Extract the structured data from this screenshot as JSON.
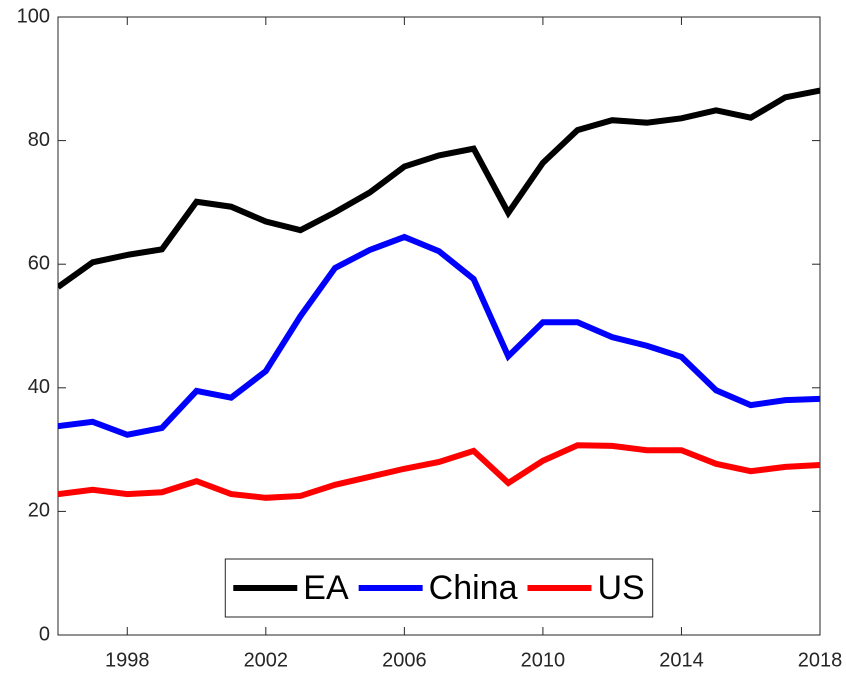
{
  "chart_data": {
    "type": "line",
    "x": [
      1996,
      1997,
      1998,
      1999,
      2000,
      2001,
      2002,
      2003,
      2004,
      2005,
      2006,
      2007,
      2008,
      2009,
      2010,
      2011,
      2012,
      2013,
      2014,
      2015,
      2016,
      2017,
      2018
    ],
    "series": [
      {
        "name": "EA",
        "color": "#000000",
        "values": [
          56.3,
          60.3,
          61.5,
          62.4,
          70.1,
          69.3,
          66.9,
          65.5,
          68.4,
          71.6,
          75.8,
          77.6,
          78.7,
          68.3,
          76.4,
          81.7,
          83.3,
          82.9,
          83.6,
          84.9,
          83.7,
          87.0,
          88.1
        ]
      },
      {
        "name": "China",
        "color": "#0000ff",
        "values": [
          33.8,
          34.5,
          32.4,
          33.5,
          39.5,
          38.4,
          42.7,
          51.6,
          59.4,
          62.3,
          64.4,
          62.1,
          57.6,
          45.1,
          50.6,
          50.6,
          48.2,
          46.8,
          45.0,
          39.6,
          37.2,
          38.0,
          38.2
        ]
      },
      {
        "name": "US",
        "color": "#ff0000",
        "values": [
          22.8,
          23.5,
          22.8,
          23.1,
          24.9,
          22.8,
          22.2,
          22.5,
          24.3,
          25.6,
          26.9,
          28.0,
          29.8,
          24.6,
          28.2,
          30.7,
          30.6,
          29.9,
          29.9,
          27.7,
          26.5,
          27.2,
          27.5
        ]
      }
    ],
    "xlim": [
      1996,
      2018
    ],
    "xticks": [
      1998,
      2002,
      2006,
      2010,
      2014,
      2018
    ],
    "ylim": [
      0,
      100
    ],
    "yticks": [
      0,
      20,
      40,
      60,
      80,
      100
    ],
    "grid": false,
    "legend": "south"
  }
}
